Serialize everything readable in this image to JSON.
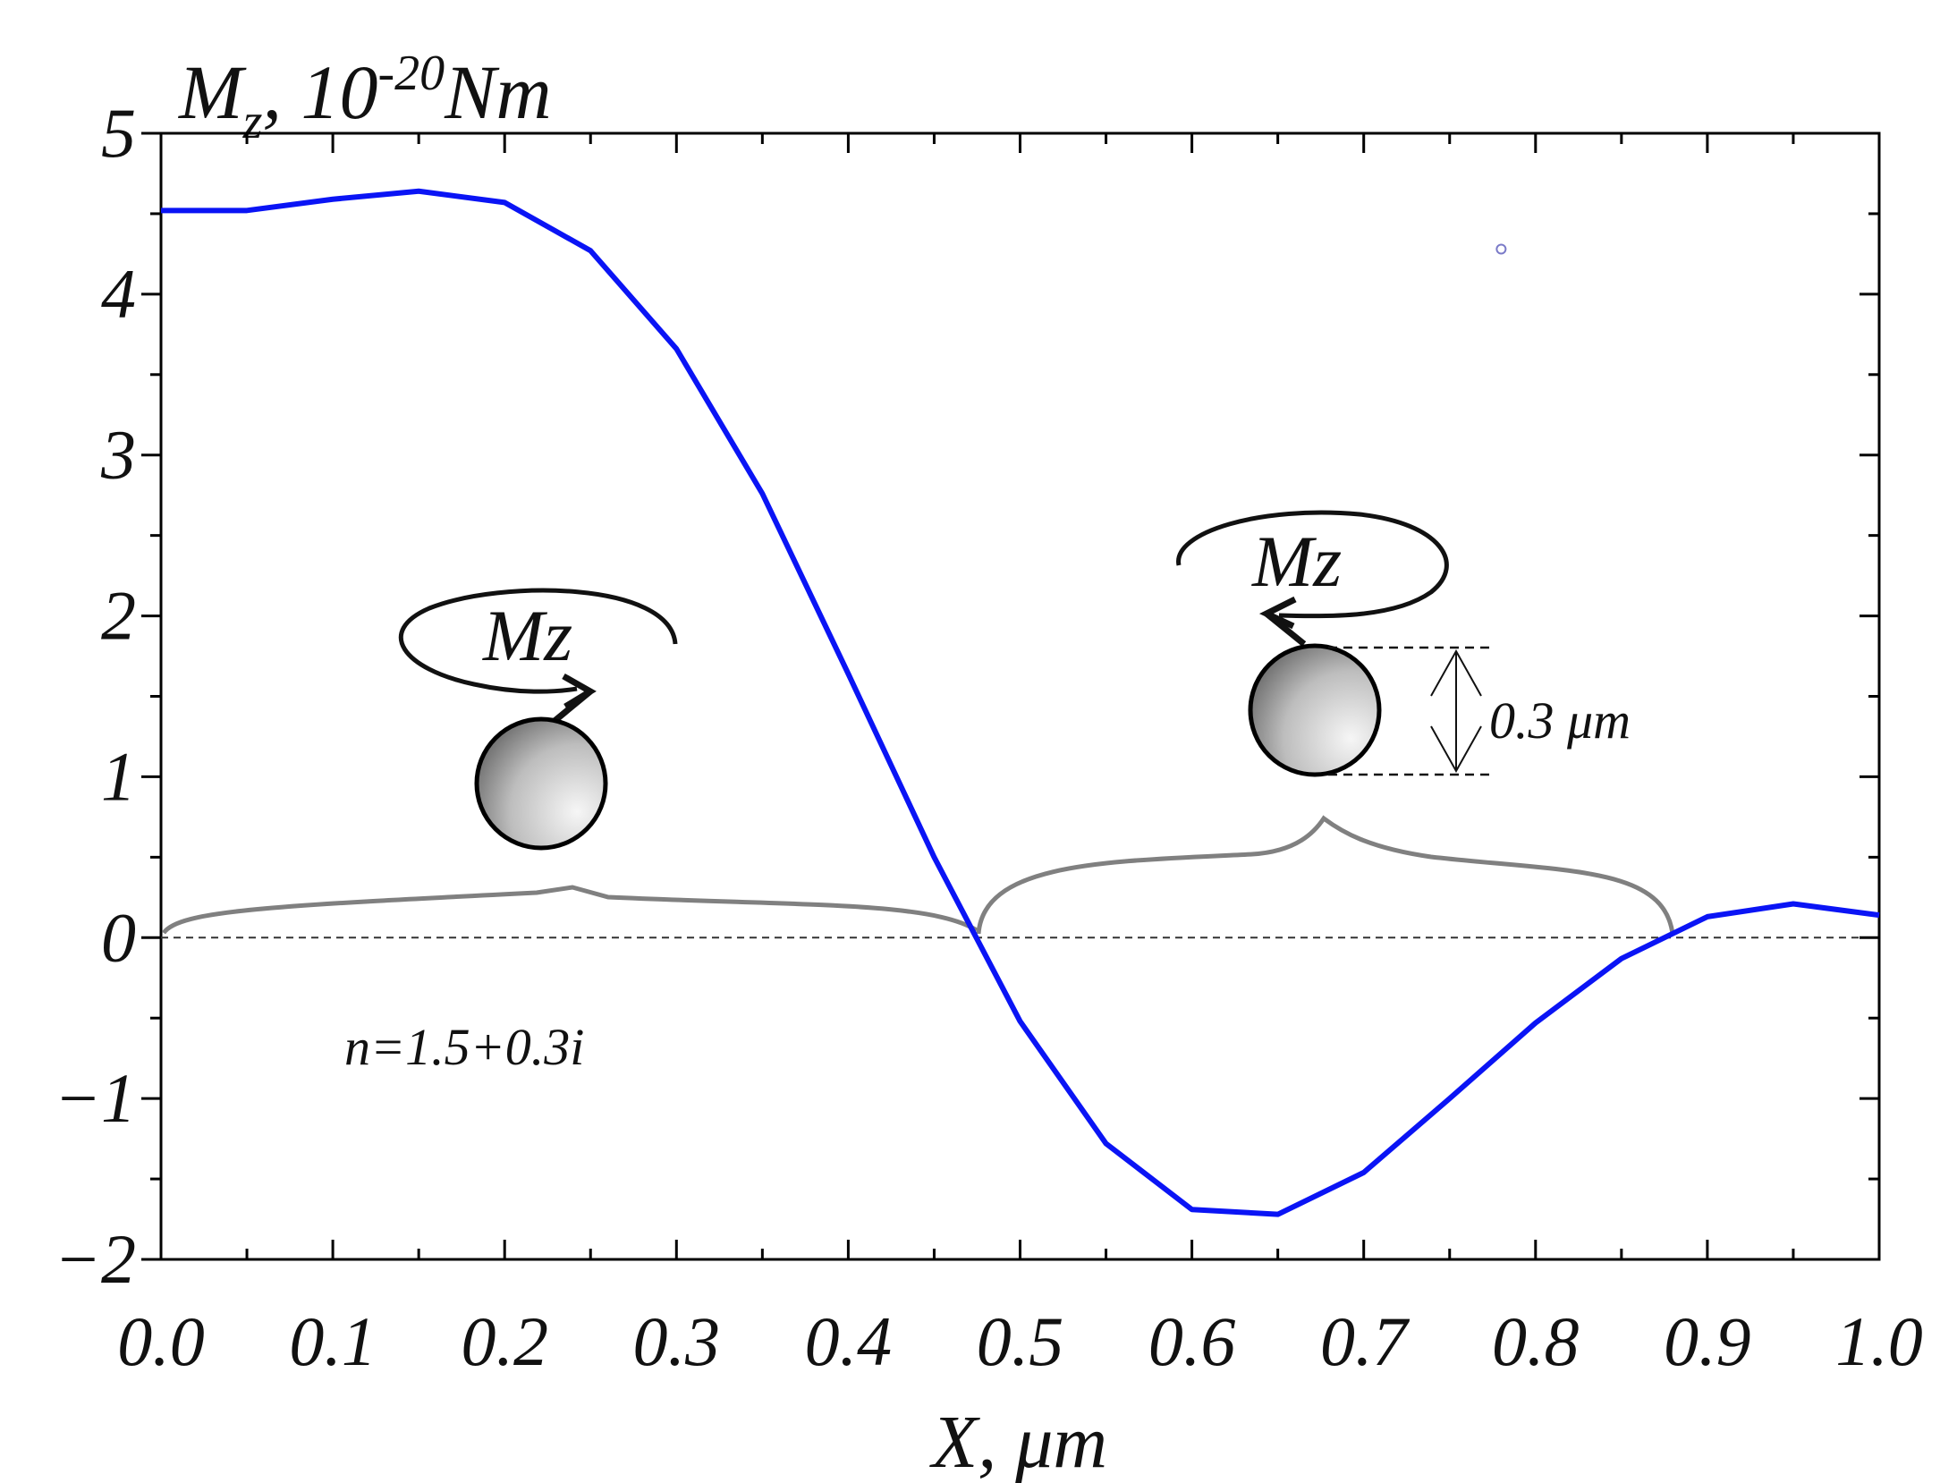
{
  "chart_data": {
    "type": "line",
    "title": "",
    "ylabel_main": "M",
    "ylabel_sub": "z",
    "ylabel_unit_prefix": ", 10",
    "ylabel_exp": "-20",
    "ylabel_unit": "Nm",
    "xlabel": "X, μm",
    "xlim": [
      0.0,
      1.0
    ],
    "ylim": [
      -2,
      5
    ],
    "x_ticks": [
      "0.0",
      "0.1",
      "0.2",
      "0.3",
      "0.4",
      "0.5",
      "0.6",
      "0.7",
      "0.8",
      "0.9",
      "1.0"
    ],
    "y_ticks": [
      "−2",
      "−1",
      "0",
      "1",
      "2",
      "3",
      "4",
      "5"
    ],
    "zero_line": true,
    "series": [
      {
        "name": "Mz",
        "color": "#0a14f5",
        "x": [
          0.0,
          0.05,
          0.1,
          0.15,
          0.2,
          0.25,
          0.3,
          0.35,
          0.4,
          0.45,
          0.5,
          0.55,
          0.6,
          0.65,
          0.7,
          0.75,
          0.8,
          0.85,
          0.9,
          0.95,
          1.0
        ],
        "y": [
          4.52,
          4.52,
          4.59,
          4.64,
          4.57,
          4.27,
          3.66,
          2.76,
          1.64,
          0.5,
          -0.52,
          -1.28,
          -1.69,
          -1.72,
          -1.46,
          -1.0,
          -0.53,
          -0.13,
          0.13,
          0.21,
          0.14
        ]
      }
    ],
    "annotations": {
      "refractive_index": "n=1.5+0.3i",
      "torque_label_left": "Mz",
      "torque_label_right": "Mz",
      "diameter_label": "0.3 μm",
      "marker_point": {
        "x": 0.78,
        "y": 4.28
      }
    },
    "colors": {
      "line": "#0a14f5",
      "brace": "#808080",
      "axis": "#000000"
    }
  }
}
